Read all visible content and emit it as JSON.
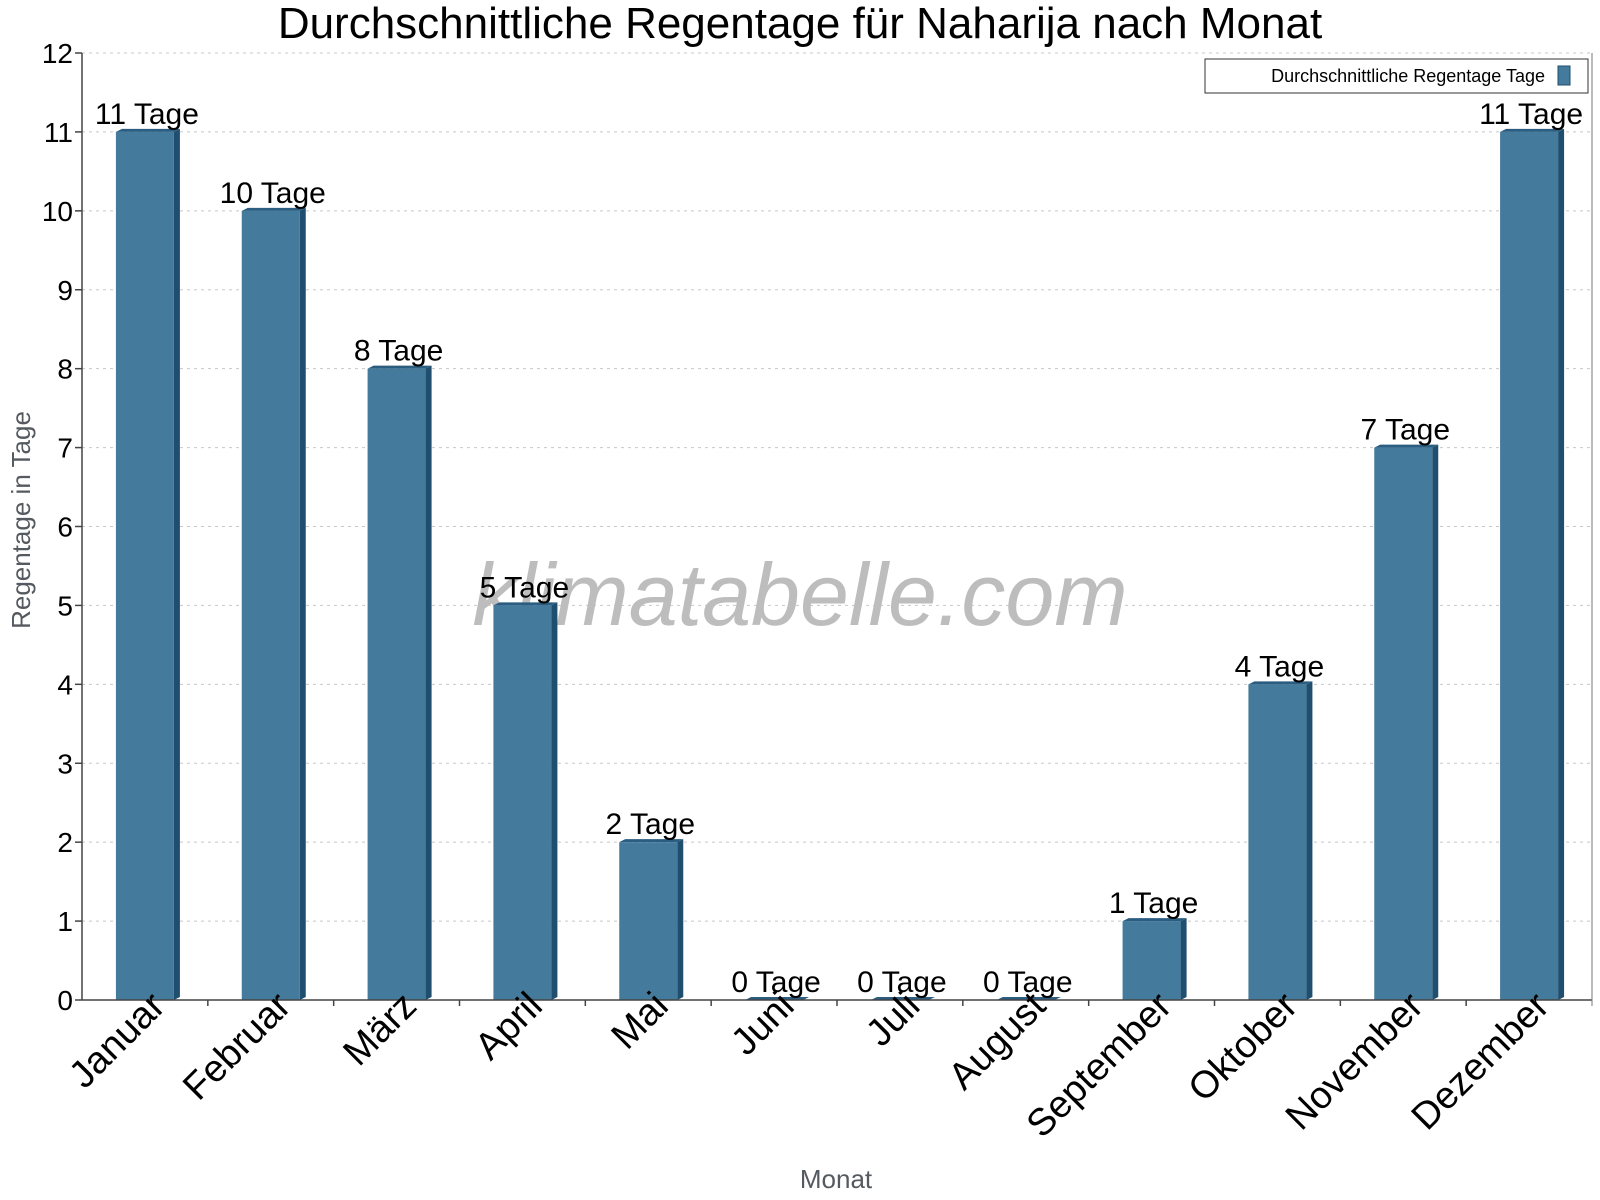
{
  "chart_data": {
    "type": "bar",
    "title": "Durchschnittliche Regentage für Naharija nach Monat",
    "xlabel": "Monat",
    "ylabel": "Regentage in Tage",
    "ylim": [
      0,
      12
    ],
    "yticks": [
      0,
      1,
      2,
      3,
      4,
      5,
      6,
      7,
      8,
      9,
      10,
      11,
      12
    ],
    "categories": [
      "Januar",
      "Februar",
      "März",
      "April",
      "Mai",
      "Juni",
      "Juli",
      "August",
      "September",
      "Oktober",
      "November",
      "Dezember"
    ],
    "series": [
      {
        "name": "Durchschnittliche Regentage Tage",
        "values": [
          11,
          10,
          8,
          5,
          2,
          0,
          0,
          0,
          1,
          4,
          7,
          11
        ],
        "labels": [
          "11 Tage",
          "10 Tage",
          "8 Tage",
          "5 Tage",
          "2 Tage",
          "0 Tage",
          "0 Tage",
          "0 Tage",
          "1 Tage",
          "4 Tage",
          "7 Tage",
          "11 Tage"
        ]
      }
    ],
    "colors": {
      "bar_front": "#447a9c",
      "bar_side": "#1f4e6e",
      "bar_top": "#2a5d80"
    },
    "grid": true,
    "legend_position": "top-right",
    "watermark": "klimatabelle.com"
  }
}
